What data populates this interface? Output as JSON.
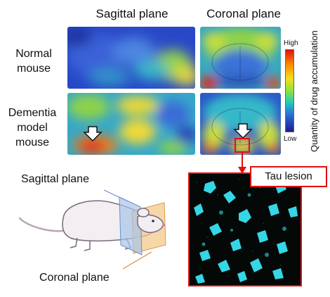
{
  "column_titles": {
    "sagittal": "Sagittal plane",
    "coronal": "Coronal plane"
  },
  "row_labels": {
    "normal": [
      "Normal",
      "mouse"
    ],
    "dementia": [
      "Dementia",
      "model",
      "mouse"
    ]
  },
  "legend": {
    "high": "High",
    "low": "Low",
    "axis_label": "Quantity of drug accumulation",
    "colors": [
      "#e01010",
      "#ff8a00",
      "#f2e01a",
      "#8ee23a",
      "#20c8c0",
      "#2a6ad8",
      "#1c1c8c"
    ]
  },
  "inset": {
    "label": "Tau lesion",
    "stain_color": "#35d6e6",
    "frame_color": "#e01010"
  },
  "diagram": {
    "sagittal_label": "Sagittal plane",
    "coronal_label": "Coronal plane"
  }
}
